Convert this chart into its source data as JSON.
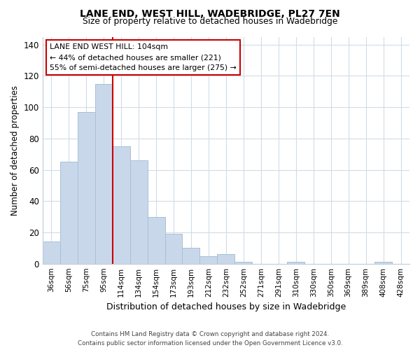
{
  "title": "LANE END, WEST HILL, WADEBRIDGE, PL27 7EN",
  "subtitle": "Size of property relative to detached houses in Wadebridge",
  "xlabel": "Distribution of detached houses by size in Wadebridge",
  "ylabel": "Number of detached properties",
  "bar_labels": [
    "36sqm",
    "56sqm",
    "75sqm",
    "95sqm",
    "114sqm",
    "134sqm",
    "154sqm",
    "173sqm",
    "193sqm",
    "212sqm",
    "232sqm",
    "252sqm",
    "271sqm",
    "291sqm",
    "310sqm",
    "330sqm",
    "350sqm",
    "369sqm",
    "389sqm",
    "408sqm",
    "428sqm"
  ],
  "bar_values": [
    14,
    65,
    97,
    115,
    75,
    66,
    30,
    19,
    10,
    5,
    6,
    1,
    0,
    0,
    1,
    0,
    0,
    0,
    0,
    1,
    0
  ],
  "bar_color": "#c8d8ea",
  "bar_edge_color": "#a8c0d6",
  "vline_color": "#cc0000",
  "annotation_line1": "LANE END WEST HILL: 104sqm",
  "annotation_line2": "← 44% of detached houses are smaller (221)",
  "annotation_line3": "55% of semi-detached houses are larger (275) →",
  "annotation_box_color": "white",
  "annotation_box_edge": "#cc0000",
  "ylim": [
    0,
    145
  ],
  "yticks": [
    0,
    20,
    40,
    60,
    80,
    100,
    120,
    140
  ],
  "footer_line1": "Contains HM Land Registry data © Crown copyright and database right 2024.",
  "footer_line2": "Contains public sector information licensed under the Open Government Licence v3.0.",
  "bg_color": "white",
  "grid_color": "#d0dce8"
}
